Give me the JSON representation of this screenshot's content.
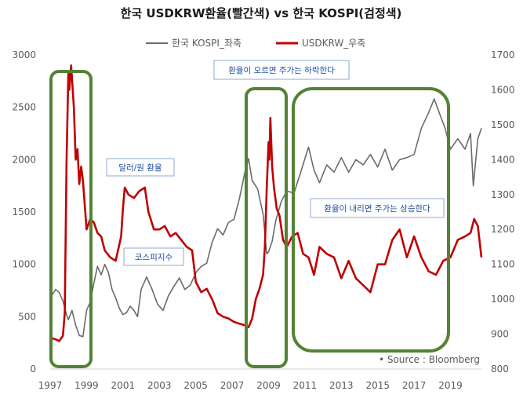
{
  "chart_data": {
    "type": "line",
    "title": "한국 USDKRW환율(빨간색) vs 한국 KOSPI(검정색)",
    "legend": [
      "한국 KOSPI_좌축",
      "USDKRW_우축"
    ],
    "source": "• Source : Bloomberg",
    "x_ticks": [
      "1997",
      "1999",
      "2001",
      "2003",
      "2005",
      "2007",
      "2009",
      "2011",
      "2013",
      "2015",
      "2017",
      "2019"
    ],
    "x_range": [
      1997,
      2020.7
    ],
    "y_left": {
      "range": [
        0,
        3000
      ],
      "ticks": [
        "0",
        "500",
        "1000",
        "1500",
        "2000",
        "2500",
        "3000"
      ]
    },
    "y_right": {
      "range": [
        800,
        1700
      ],
      "ticks": [
        "800",
        "900",
        "1000",
        "1100",
        "1200",
        "1300",
        "1400",
        "1500",
        "1600",
        "1700"
      ]
    },
    "annotations": {
      "fx_label": "달러/원 환율",
      "kospi_label": "코스피지수",
      "note_up": "환율이 오르면 주가는 하락한다",
      "note_down": "환율이 내리면 주가는 상승한다"
    },
    "series": [
      {
        "name": "한국 KOSPI_좌축",
        "axis": "left",
        "color": "#6b6b6b",
        "x": [
          1997.0,
          1997.3,
          1997.5,
          1997.7,
          1997.9,
          1998.0,
          1998.2,
          1998.4,
          1998.6,
          1998.8,
          1999.0,
          1999.2,
          1999.4,
          1999.6,
          1999.8,
          2000.0,
          2000.2,
          2000.4,
          2000.6,
          2000.8,
          2001.0,
          2001.2,
          2001.4,
          2001.6,
          2001.8,
          2002.0,
          2002.3,
          2002.6,
          2002.9,
          2003.2,
          2003.5,
          2003.8,
          2004.1,
          2004.4,
          2004.7,
          2005.0,
          2005.3,
          2005.6,
          2005.9,
          2006.2,
          2006.5,
          2006.8,
          2007.1,
          2007.4,
          2007.7,
          2007.9,
          2008.1,
          2008.4,
          2008.7,
          2008.9,
          2009.0,
          2009.2,
          2009.4,
          2009.7,
          2010.0,
          2010.4,
          2010.8,
          2011.2,
          2011.5,
          2011.8,
          2012.2,
          2012.6,
          2013.0,
          2013.4,
          2013.8,
          2014.2,
          2014.6,
          2015.0,
          2015.4,
          2015.8,
          2016.2,
          2016.6,
          2017.0,
          2017.4,
          2017.8,
          2018.1,
          2018.4,
          2018.7,
          2019.0,
          2019.4,
          2019.8,
          2020.1,
          2020.25,
          2020.5,
          2020.7
        ],
        "values": [
          680,
          760,
          730,
          650,
          520,
          470,
          560,
          420,
          320,
          310,
          560,
          640,
          820,
          980,
          900,
          1000,
          920,
          760,
          680,
          580,
          520,
          540,
          600,
          560,
          500,
          760,
          880,
          760,
          620,
          560,
          700,
          790,
          870,
          760,
          800,
          920,
          980,
          1010,
          1210,
          1340,
          1280,
          1400,
          1430,
          1630,
          1880,
          2010,
          1800,
          1720,
          1480,
          1100,
          1120,
          1220,
          1420,
          1600,
          1700,
          1680,
          1900,
          2120,
          1900,
          1780,
          1950,
          1880,
          2020,
          1880,
          2000,
          1950,
          2050,
          1930,
          2100,
          1900,
          2000,
          2020,
          2050,
          2300,
          2450,
          2580,
          2440,
          2300,
          2100,
          2200,
          2100,
          2250,
          1750,
          2200,
          2300
        ]
      },
      {
        "name": "USDKRW_우축",
        "axis": "right",
        "color": "#c00000",
        "x": [
          1997.0,
          1997.3,
          1997.5,
          1997.7,
          1997.8,
          1997.9,
          1998.0,
          1998.05,
          1998.15,
          1998.3,
          1998.4,
          1998.5,
          1998.6,
          1998.7,
          1998.8,
          1998.9,
          1999.0,
          1999.2,
          1999.4,
          1999.6,
          1999.8,
          2000.0,
          2000.3,
          2000.6,
          2000.9,
          2001.0,
          2001.1,
          2001.3,
          2001.6,
          2001.9,
          2002.2,
          2002.4,
          2002.7,
          2003.0,
          2003.3,
          2003.6,
          2003.9,
          2004.2,
          2004.5,
          2004.8,
          2005.0,
          2005.3,
          2005.6,
          2005.9,
          2006.2,
          2006.5,
          2006.8,
          2007.1,
          2007.4,
          2007.7,
          2007.9,
          2008.1,
          2008.3,
          2008.5,
          2008.7,
          2008.8,
          2008.9,
          2009.0,
          2009.05,
          2009.1,
          2009.2,
          2009.3,
          2009.45,
          2009.6,
          2009.8,
          2010.0,
          2010.3,
          2010.6,
          2010.9,
          2011.2,
          2011.5,
          2011.8,
          2012.2,
          2012.6,
          2013.0,
          2013.4,
          2013.8,
          2014.2,
          2014.6,
          2015.0,
          2015.4,
          2015.8,
          2016.2,
          2016.6,
          2017.0,
          2017.4,
          2017.8,
          2018.2,
          2018.6,
          2019.0,
          2019.4,
          2019.8,
          2020.1,
          2020.3,
          2020.5,
          2020.7
        ],
        "values": [
          890,
          885,
          880,
          895,
          960,
          1400,
          1650,
          1600,
          1670,
          1550,
          1400,
          1430,
          1330,
          1380,
          1340,
          1270,
          1200,
          1230,
          1220,
          1190,
          1180,
          1140,
          1120,
          1110,
          1180,
          1260,
          1320,
          1300,
          1290,
          1310,
          1320,
          1250,
          1200,
          1200,
          1210,
          1180,
          1190,
          1170,
          1150,
          1140,
          1050,
          1020,
          1030,
          1000,
          960,
          950,
          945,
          935,
          930,
          925,
          920,
          945,
          1000,
          1030,
          1070,
          1150,
          1320,
          1450,
          1400,
          1520,
          1380,
          1320,
          1260,
          1240,
          1170,
          1150,
          1180,
          1190,
          1130,
          1120,
          1070,
          1150,
          1130,
          1120,
          1060,
          1110,
          1060,
          1040,
          1020,
          1100,
          1100,
          1170,
          1200,
          1120,
          1180,
          1120,
          1080,
          1070,
          1110,
          1120,
          1170,
          1180,
          1190,
          1230,
          1210,
          1120
        ]
      }
    ]
  }
}
